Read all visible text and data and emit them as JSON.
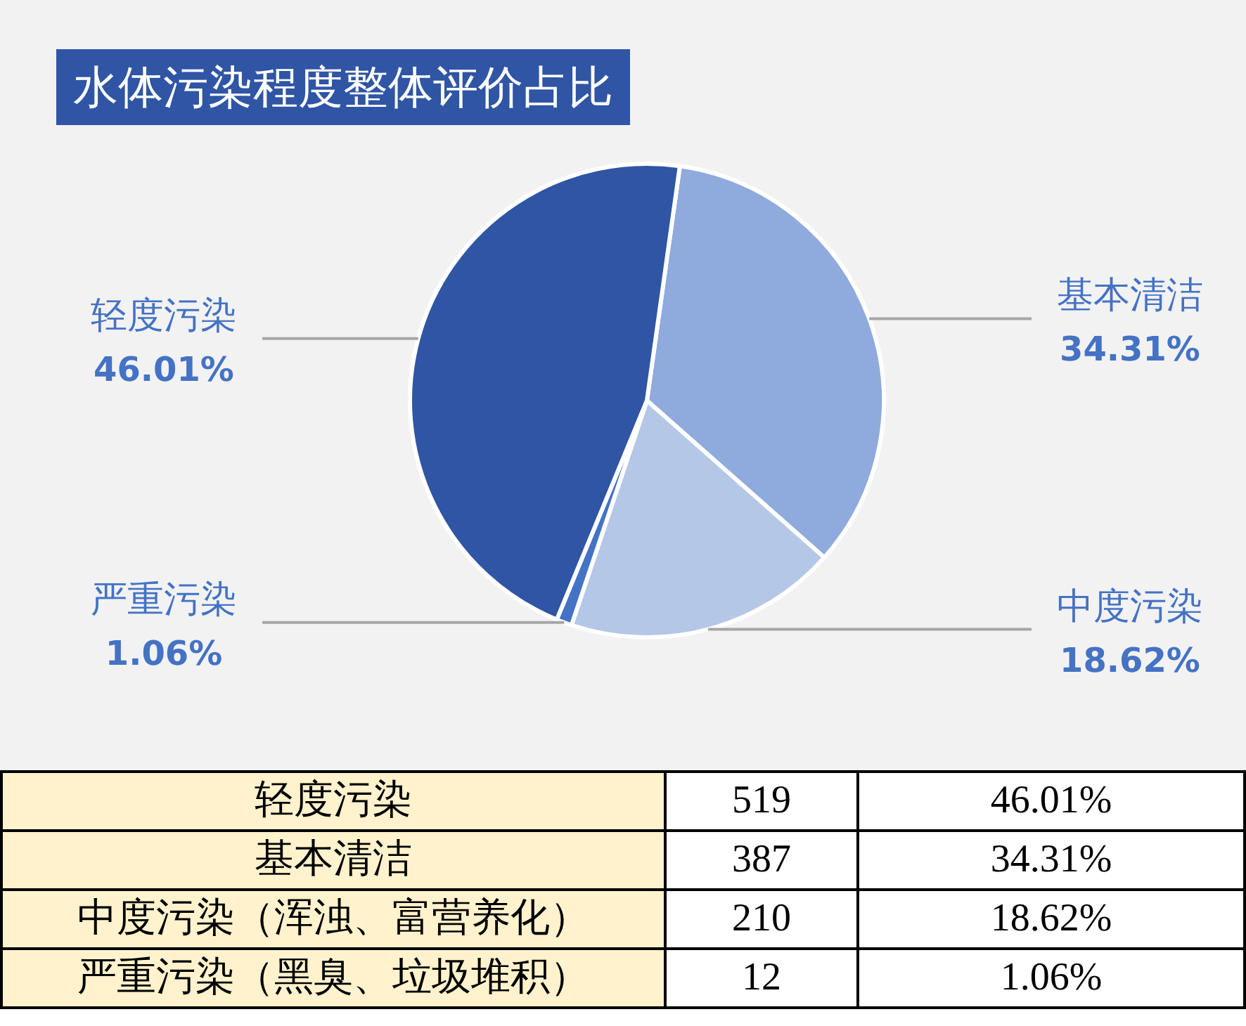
{
  "chart_data": [
    {
      "type": "pie",
      "title": "水体污染程度整体评价占比",
      "categories": [
        "基本清洁",
        "中度污染",
        "严重污染",
        "轻度污染"
      ],
      "values": [
        34.31,
        18.62,
        1.06,
        46.01
      ],
      "colors": [
        "#8faadc",
        "#b4c7e7",
        "#4472c4",
        "#2f55a4"
      ],
      "value_labels": [
        "34.31%",
        "18.62%",
        "1.06%",
        "46.01%"
      ]
    },
    {
      "type": "other",
      "categories": [
        "轻度污染",
        "基本清洁",
        "中度污染（浑浊、富营养化）",
        "严重污染（黑臭、垃圾堆积）"
      ],
      "data_labels": true,
      "series": [
        {
          "values": [
            519,
            387,
            210,
            12
          ]
        },
        {
          "values": [
            46.01,
            34.31,
            18.62,
            1.06
          ],
          "value_labels": [
            "46.01%",
            "34.31%",
            "18.62%",
            "1.06%"
          ]
        }
      ]
    }
  ]
}
